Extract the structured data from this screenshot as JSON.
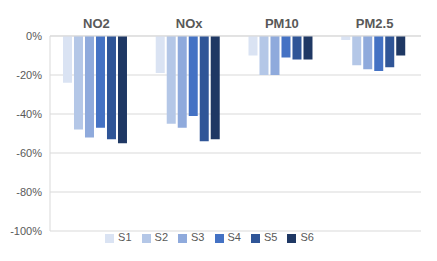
{
  "chart_data": {
    "type": "bar",
    "categories": [
      "NO2",
      "NOx",
      "PM10",
      "PM2.5"
    ],
    "series": [
      {
        "name": "S1",
        "color": "#dae3f3",
        "values": [
          -24,
          -19,
          -10,
          -2
        ]
      },
      {
        "name": "S2",
        "color": "#b4c7e7",
        "values": [
          -48,
          -45,
          -20,
          -15
        ]
      },
      {
        "name": "S3",
        "color": "#8faadc",
        "values": [
          -52,
          -47,
          -20,
          -17
        ]
      },
      {
        "name": "S4",
        "color": "#4472c4",
        "values": [
          -47,
          -41,
          -11,
          -18
        ]
      },
      {
        "name": "S5",
        "color": "#2f5597",
        "values": [
          -53,
          -54,
          -12,
          -16
        ]
      },
      {
        "name": "S6",
        "color": "#1f3864",
        "values": [
          -55,
          -53,
          -12,
          -10
        ]
      }
    ],
    "ylim": [
      -100,
      0
    ],
    "yticks": [
      {
        "value": 0,
        "label": "0%"
      },
      {
        "value": -20,
        "label": "-20%"
      },
      {
        "value": -40,
        "label": "-40%"
      },
      {
        "value": -60,
        "label": "-60%"
      },
      {
        "value": -80,
        "label": "-80%"
      },
      {
        "value": -100,
        "label": "-100%"
      }
    ],
    "grid": true,
    "legend": "bottom"
  }
}
